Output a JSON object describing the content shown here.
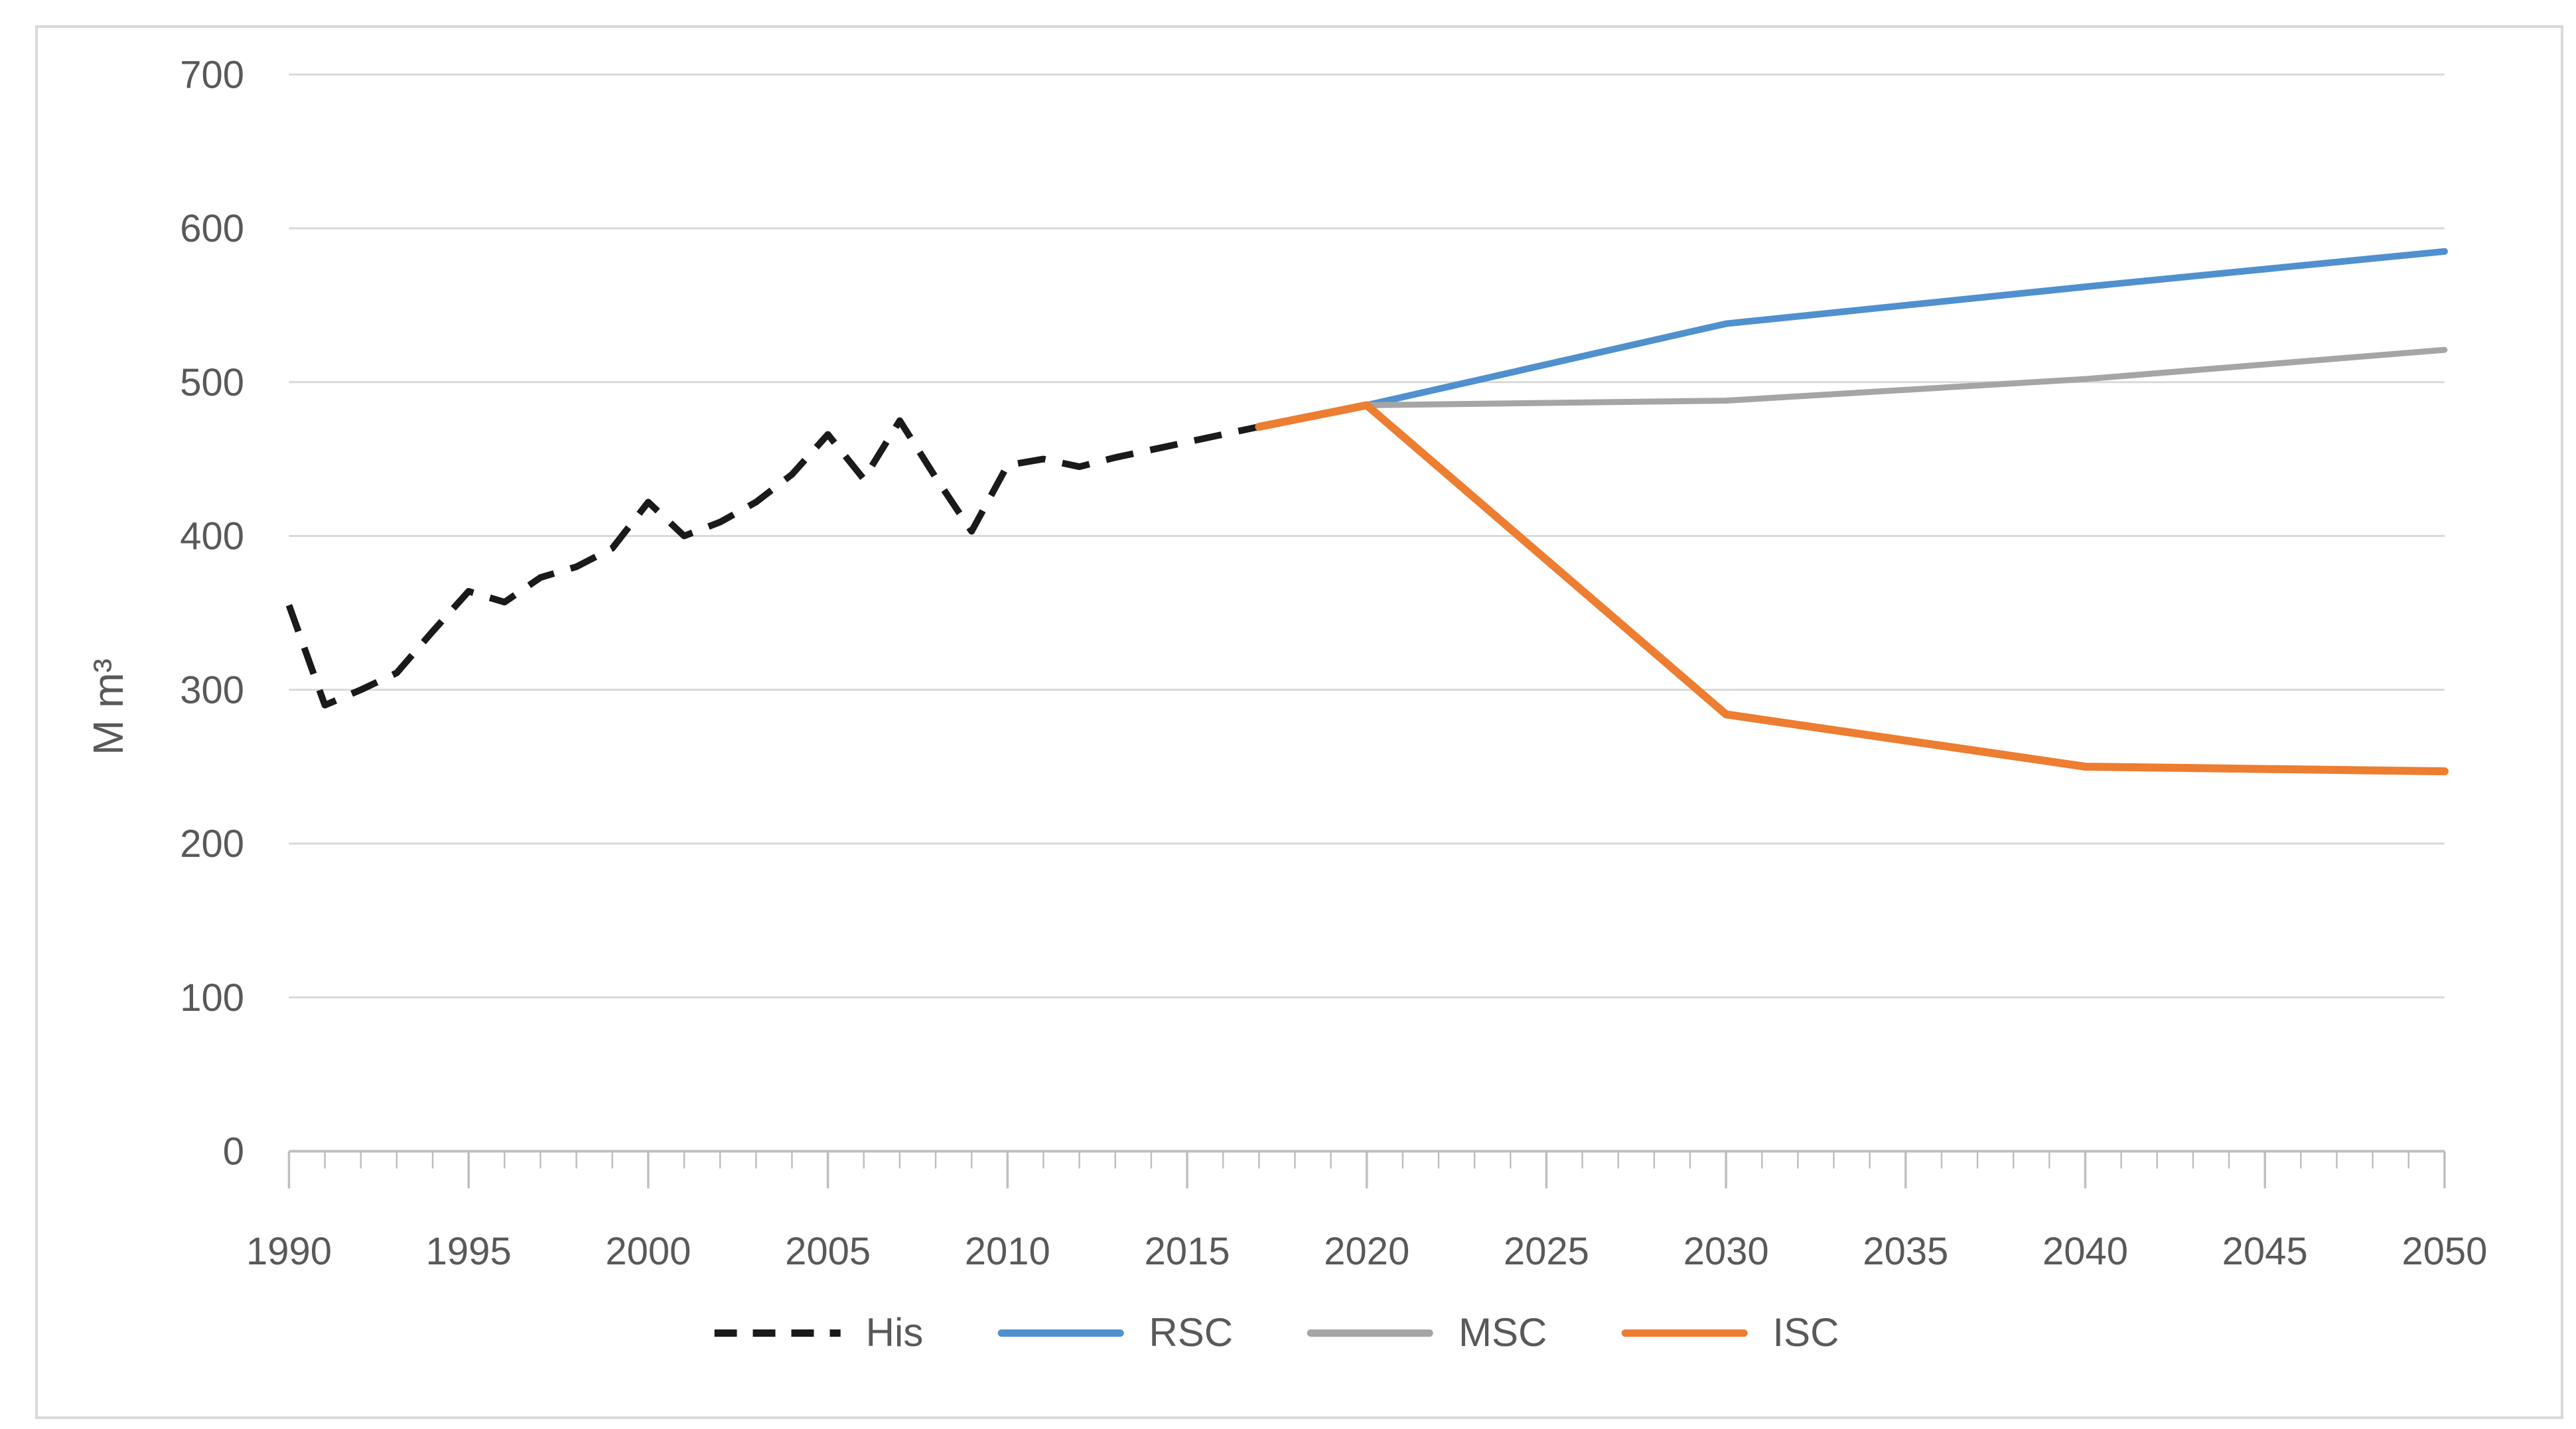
{
  "chart_data": {
    "type": "line",
    "title": "",
    "xlabel": "",
    "ylabel": "M m³",
    "ylim": [
      0,
      700
    ],
    "xlim": [
      1990,
      2050
    ],
    "grid": "horizontal",
    "legend_position": "bottom",
    "background": "#ffffff",
    "frame_border_color": "#d9d9d9",
    "gridline_color": "#d9d9d9",
    "axis_color": "#bfbfbf",
    "tick_label_color": "#595959",
    "y_ticks": [
      0,
      100,
      200,
      300,
      400,
      500,
      600,
      700
    ],
    "x_major_ticks": [
      1990,
      1995,
      2000,
      2005,
      2010,
      2015,
      2020,
      2025,
      2030,
      2035,
      2040,
      2045,
      2050
    ],
    "x_minor_tick_step": 1,
    "series": [
      {
        "name": "His",
        "color": "#1a1a1a",
        "style": "dashed",
        "width": 10,
        "points": [
          [
            1990,
            355
          ],
          [
            1991,
            290
          ],
          [
            1992,
            300
          ],
          [
            1993,
            311
          ],
          [
            1994,
            338
          ],
          [
            1995,
            364
          ],
          [
            1996,
            357
          ],
          [
            1997,
            373
          ],
          [
            1998,
            380
          ],
          [
            1999,
            392
          ],
          [
            2000,
            422
          ],
          [
            2001,
            400
          ],
          [
            2002,
            409
          ],
          [
            2003,
            422
          ],
          [
            2004,
            440
          ],
          [
            2005,
            466
          ],
          [
            2006,
            437
          ],
          [
            2007,
            475
          ],
          [
            2008,
            438
          ],
          [
            2009,
            403
          ],
          [
            2010,
            446
          ],
          [
            2011,
            450
          ],
          [
            2012,
            445
          ],
          [
            2013,
            451
          ],
          [
            2014,
            456
          ],
          [
            2015,
            461
          ],
          [
            2016,
            466
          ],
          [
            2017,
            471
          ]
        ]
      },
      {
        "name": "RSC",
        "color": "#5090ce",
        "style": "solid",
        "width": 10,
        "points": [
          [
            2020,
            485
          ],
          [
            2030,
            538
          ],
          [
            2040,
            562
          ],
          [
            2050,
            585
          ]
        ]
      },
      {
        "name": "MSC",
        "color": "#a5a5a5",
        "style": "solid",
        "width": 9,
        "points": [
          [
            2020,
            485
          ],
          [
            2030,
            488
          ],
          [
            2040,
            502
          ],
          [
            2050,
            521
          ]
        ]
      },
      {
        "name": "ISC",
        "color": "#ed7d31",
        "style": "solid",
        "width": 12,
        "points": [
          [
            2017,
            471
          ],
          [
            2020,
            485
          ],
          [
            2030,
            284
          ],
          [
            2040,
            250
          ],
          [
            2050,
            247
          ]
        ]
      }
    ],
    "legend": [
      {
        "label": "His",
        "color": "#1a1a1a",
        "style": "dashed"
      },
      {
        "label": "RSC",
        "color": "#5090ce",
        "style": "solid"
      },
      {
        "label": "MSC",
        "color": "#a5a5a5",
        "style": "solid"
      },
      {
        "label": "ISC",
        "color": "#ed7d31",
        "style": "solid"
      }
    ]
  }
}
